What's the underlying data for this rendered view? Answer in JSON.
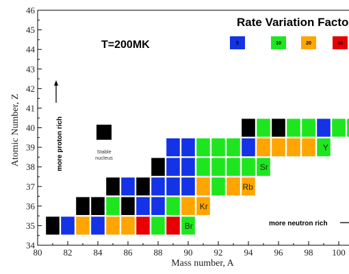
{
  "chart_data": {
    "type": "heatmap",
    "title": "Rate Variation Factor",
    "temperature_label": "T=200MK",
    "xlabel": "Mass number, A",
    "ylabel": "Atomic Number, Z",
    "xlim": [
      80,
      101
    ],
    "ylim": [
      34,
      46
    ],
    "x_ticks": [
      80,
      82,
      84,
      86,
      88,
      90,
      92,
      94,
      96,
      98,
      100
    ],
    "y_ticks": [
      34,
      35,
      36,
      37,
      38,
      39,
      40,
      41,
      42,
      43,
      44,
      45,
      46
    ],
    "legend": [
      {
        "key": "f5",
        "label": "5",
        "color": "#1432e6"
      },
      {
        "key": "f10",
        "label": "10",
        "color": "#1ee61e"
      },
      {
        "key": "f20",
        "label": "20",
        "color": "#ffa500"
      },
      {
        "key": "f30",
        "label": "30",
        "color": "#e60000"
      }
    ],
    "stable_color": "#000000",
    "stable_legend_label": "Stable nucleus",
    "annotations": {
      "proton_rich": "more proton rich",
      "neutron_rich": "more neutron rich"
    },
    "rows": [
      {
        "z": 35,
        "a_start": 81,
        "cells": [
          "stable",
          "f5",
          "f20",
          "f5",
          "f20",
          "f20",
          "f30",
          "f10",
          "f30",
          "f10"
        ],
        "label": "Br"
      },
      {
        "z": 36,
        "a_start": 83,
        "cells": [
          "stable",
          "stable",
          "f10",
          "stable",
          "f5",
          "f5",
          "f10",
          "f20",
          "f20"
        ],
        "label": "Kr"
      },
      {
        "z": 37,
        "a_start": 85,
        "cells": [
          "stable",
          "f5",
          "stable",
          "f5",
          "f5",
          "f5",
          "f20",
          "f10",
          "f20",
          "f20"
        ],
        "label": "Rb"
      },
      {
        "z": 38,
        "a_start": 88,
        "cells": [
          "stable",
          "f5",
          "f5",
          "f10",
          "f10",
          "f10",
          "f10",
          "f10"
        ],
        "label": "Sr"
      },
      {
        "z": 39,
        "a_start": 89,
        "cells": [
          "f5",
          "f5",
          "f10",
          "f10",
          "f10",
          "f5",
          "f20",
          "f20",
          "f20",
          "f20",
          "f10"
        ],
        "label": "Y"
      },
      {
        "z": 40,
        "a_start": 94,
        "cells": [
          "stable",
          "f10",
          "stable",
          "f10",
          "f10",
          "f5",
          "f10",
          "f10"
        ],
        "label": ""
      }
    ]
  }
}
